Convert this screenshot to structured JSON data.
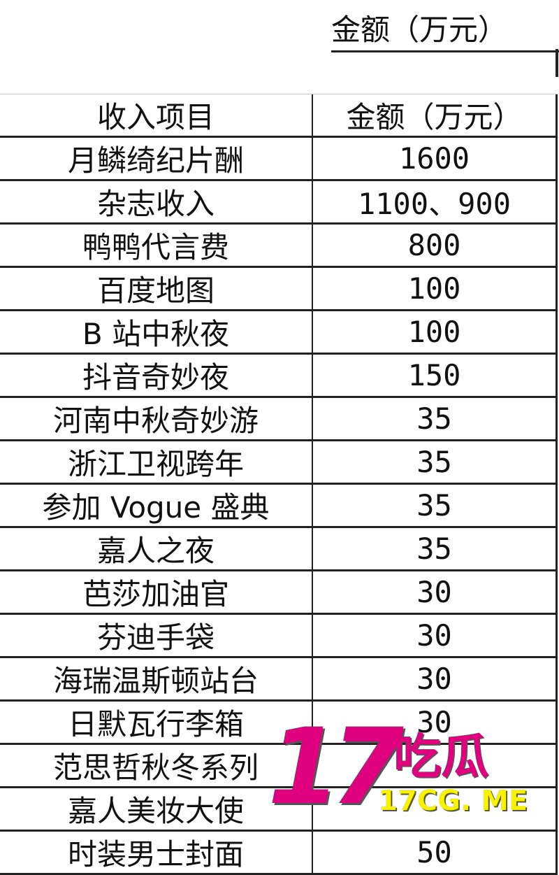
{
  "top_header": "金额（万元）",
  "table": {
    "headers": [
      "收入项目",
      "金额（万元）"
    ],
    "rows": [
      {
        "item": "月鳞绮纪片酬",
        "amount": "1600"
      },
      {
        "item": "杂志收入",
        "amount": "1100、900"
      },
      {
        "item": "鸭鸭代言费",
        "amount": "800"
      },
      {
        "item": "百度地图",
        "amount": "100"
      },
      {
        "item": "B 站中秋夜",
        "amount": "100"
      },
      {
        "item": "抖音奇妙夜",
        "amount": "150"
      },
      {
        "item": "河南中秋奇妙游",
        "amount": "35"
      },
      {
        "item": "浙江卫视跨年",
        "amount": "35"
      },
      {
        "item": "参加 Vogue 盛典",
        "amount": "35"
      },
      {
        "item": "嘉人之夜",
        "amount": "35"
      },
      {
        "item": "芭莎加油官",
        "amount": "30"
      },
      {
        "item": "芬迪手袋",
        "amount": "30"
      },
      {
        "item": "海瑞温斯顿站台",
        "amount": "30"
      },
      {
        "item": "日默瓦行李箱",
        "amount": "30"
      },
      {
        "item": "范思哲秋冬系列",
        "amount": ""
      },
      {
        "item": "嘉人美妆大使",
        "amount": ""
      },
      {
        "item": "时装男士封面",
        "amount": "50"
      }
    ]
  },
  "watermark": {
    "logo_number": "17",
    "logo_text": "吃瓜",
    "url": "17CG. ME",
    "colors": {
      "primary": "#e0007f",
      "url": "#f7f200"
    }
  }
}
